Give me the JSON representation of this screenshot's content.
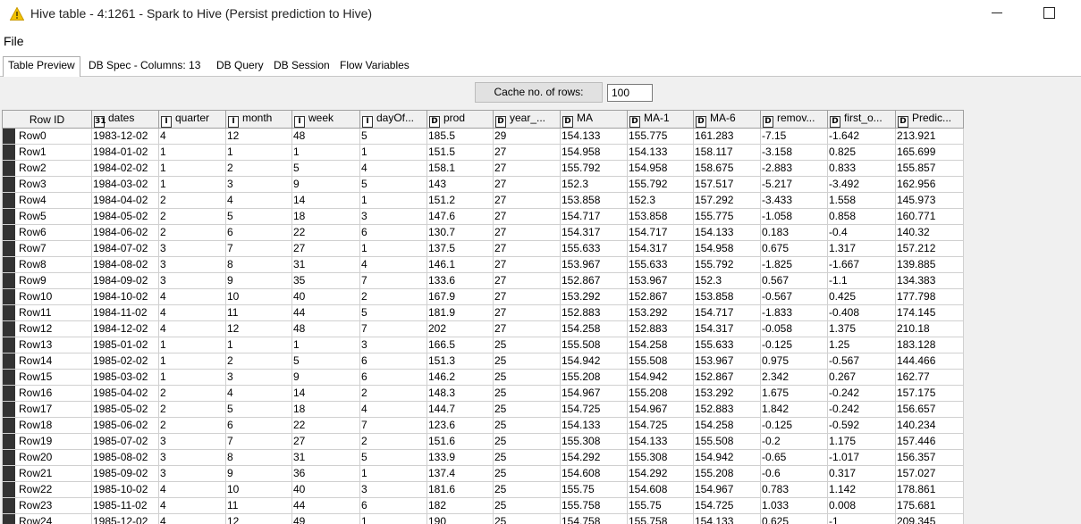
{
  "window": {
    "title": "Hive table - 4:1261 - Spark to Hive (Persist prediction to Hive)"
  },
  "menu": {
    "file": "File"
  },
  "tabs": [
    {
      "label": "Table Preview",
      "active": true
    },
    {
      "label": "DB Spec - Columns: 13",
      "active": false
    },
    {
      "label": "DB Query",
      "active": false
    },
    {
      "label": "DB Session",
      "active": false
    },
    {
      "label": "Flow Variables",
      "active": false
    }
  ],
  "cache": {
    "label": "Cache no. of rows:",
    "value": "100"
  },
  "table": {
    "row_id_header": "Row ID",
    "columns": [
      {
        "type_icon": "31",
        "name": "dates"
      },
      {
        "type_icon": "I",
        "name": "quarter"
      },
      {
        "type_icon": "I",
        "name": "month"
      },
      {
        "type_icon": "I",
        "name": "week"
      },
      {
        "type_icon": "I",
        "name": "dayOf..."
      },
      {
        "type_icon": "D",
        "name": "prod"
      },
      {
        "type_icon": "D",
        "name": "year_..."
      },
      {
        "type_icon": "D",
        "name": "MA"
      },
      {
        "type_icon": "D",
        "name": "MA-1"
      },
      {
        "type_icon": "D",
        "name": "MA-6"
      },
      {
        "type_icon": "D",
        "name": "remov..."
      },
      {
        "type_icon": "D",
        "name": "first_o..."
      },
      {
        "type_icon": "D",
        "name": "Predic..."
      }
    ],
    "rows": [
      [
        "Row0",
        "1983-12-02",
        "4",
        "12",
        "48",
        "5",
        "185.5",
        "29",
        "154.133",
        "155.775",
        "161.283",
        "-7.15",
        "-1.642",
        "213.921"
      ],
      [
        "Row1",
        "1984-01-02",
        "1",
        "1",
        "1",
        "1",
        "151.5",
        "27",
        "154.958",
        "154.133",
        "158.117",
        "-3.158",
        "0.825",
        "165.699"
      ],
      [
        "Row2",
        "1984-02-02",
        "1",
        "2",
        "5",
        "4",
        "158.1",
        "27",
        "155.792",
        "154.958",
        "158.675",
        "-2.883",
        "0.833",
        "155.857"
      ],
      [
        "Row3",
        "1984-03-02",
        "1",
        "3",
        "9",
        "5",
        "143",
        "27",
        "152.3",
        "155.792",
        "157.517",
        "-5.217",
        "-3.492",
        "162.956"
      ],
      [
        "Row4",
        "1984-04-02",
        "2",
        "4",
        "14",
        "1",
        "151.2",
        "27",
        "153.858",
        "152.3",
        "157.292",
        "-3.433",
        "1.558",
        "145.973"
      ],
      [
        "Row5",
        "1984-05-02",
        "2",
        "5",
        "18",
        "3",
        "147.6",
        "27",
        "154.717",
        "153.858",
        "155.775",
        "-1.058",
        "0.858",
        "160.771"
      ],
      [
        "Row6",
        "1984-06-02",
        "2",
        "6",
        "22",
        "6",
        "130.7",
        "27",
        "154.317",
        "154.717",
        "154.133",
        "0.183",
        "-0.4",
        "140.32"
      ],
      [
        "Row7",
        "1984-07-02",
        "3",
        "7",
        "27",
        "1",
        "137.5",
        "27",
        "155.633",
        "154.317",
        "154.958",
        "0.675",
        "1.317",
        "157.212"
      ],
      [
        "Row8",
        "1984-08-02",
        "3",
        "8",
        "31",
        "4",
        "146.1",
        "27",
        "153.967",
        "155.633",
        "155.792",
        "-1.825",
        "-1.667",
        "139.885"
      ],
      [
        "Row9",
        "1984-09-02",
        "3",
        "9",
        "35",
        "7",
        "133.6",
        "27",
        "152.867",
        "153.967",
        "152.3",
        "0.567",
        "-1.1",
        "134.383"
      ],
      [
        "Row10",
        "1984-10-02",
        "4",
        "10",
        "40",
        "2",
        "167.9",
        "27",
        "153.292",
        "152.867",
        "153.858",
        "-0.567",
        "0.425",
        "177.798"
      ],
      [
        "Row11",
        "1984-11-02",
        "4",
        "11",
        "44",
        "5",
        "181.9",
        "27",
        "152.883",
        "153.292",
        "154.717",
        "-1.833",
        "-0.408",
        "174.145"
      ],
      [
        "Row12",
        "1984-12-02",
        "4",
        "12",
        "48",
        "7",
        "202",
        "27",
        "154.258",
        "152.883",
        "154.317",
        "-0.058",
        "1.375",
        "210.18"
      ],
      [
        "Row13",
        "1985-01-02",
        "1",
        "1",
        "1",
        "3",
        "166.5",
        "25",
        "155.508",
        "154.258",
        "155.633",
        "-0.125",
        "1.25",
        "183.128"
      ],
      [
        "Row14",
        "1985-02-02",
        "1",
        "2",
        "5",
        "6",
        "151.3",
        "25",
        "154.942",
        "155.508",
        "153.967",
        "0.975",
        "-0.567",
        "144.466"
      ],
      [
        "Row15",
        "1985-03-02",
        "1",
        "3",
        "9",
        "6",
        "146.2",
        "25",
        "155.208",
        "154.942",
        "152.867",
        "2.342",
        "0.267",
        "162.77"
      ],
      [
        "Row16",
        "1985-04-02",
        "2",
        "4",
        "14",
        "2",
        "148.3",
        "25",
        "154.967",
        "155.208",
        "153.292",
        "1.675",
        "-0.242",
        "157.175"
      ],
      [
        "Row17",
        "1985-05-02",
        "2",
        "5",
        "18",
        "4",
        "144.7",
        "25",
        "154.725",
        "154.967",
        "152.883",
        "1.842",
        "-0.242",
        "156.657"
      ],
      [
        "Row18",
        "1985-06-02",
        "2",
        "6",
        "22",
        "7",
        "123.6",
        "25",
        "154.133",
        "154.725",
        "154.258",
        "-0.125",
        "-0.592",
        "140.234"
      ],
      [
        "Row19",
        "1985-07-02",
        "3",
        "7",
        "27",
        "2",
        "151.6",
        "25",
        "155.308",
        "154.133",
        "155.508",
        "-0.2",
        "1.175",
        "157.446"
      ],
      [
        "Row20",
        "1985-08-02",
        "3",
        "8",
        "31",
        "5",
        "133.9",
        "25",
        "154.292",
        "155.308",
        "154.942",
        "-0.65",
        "-1.017",
        "156.357"
      ],
      [
        "Row21",
        "1985-09-02",
        "3",
        "9",
        "36",
        "1",
        "137.4",
        "25",
        "154.608",
        "154.292",
        "155.208",
        "-0.6",
        "0.317",
        "157.027"
      ],
      [
        "Row22",
        "1985-10-02",
        "4",
        "10",
        "40",
        "3",
        "181.6",
        "25",
        "155.75",
        "154.608",
        "154.967",
        "0.783",
        "1.142",
        "178.861"
      ],
      [
        "Row23",
        "1985-11-02",
        "4",
        "11",
        "44",
        "6",
        "182",
        "25",
        "155.758",
        "155.75",
        "154.725",
        "1.033",
        "0.008",
        "175.681"
      ],
      [
        "Row24",
        "1985-12-02",
        "4",
        "12",
        "49",
        "1",
        "190",
        "25",
        "154.758",
        "155.758",
        "154.133",
        "0.625",
        "-1",
        "209.345"
      ]
    ]
  }
}
